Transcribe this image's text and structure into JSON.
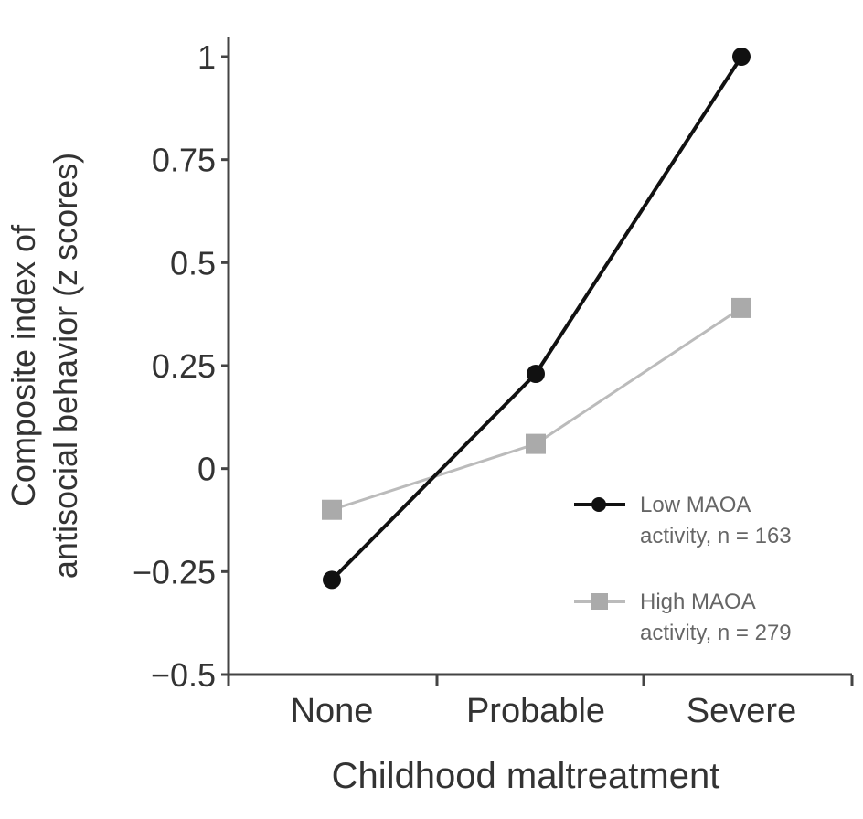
{
  "chart_data": {
    "type": "line",
    "title": "",
    "xlabel": "Childhood maltreatment",
    "ylabel_lines": [
      "Composite index of",
      "antisocial behavior (z scores)"
    ],
    "categories": [
      "None",
      "Probable",
      "Severe"
    ],
    "ylim": [
      -0.5,
      1
    ],
    "yticks": [
      -0.5,
      -0.25,
      0,
      0.25,
      0.5,
      0.75,
      1
    ],
    "ytick_labels": [
      "−0.5",
      "−0.25",
      "0",
      "0.25",
      "0.5",
      "0.75",
      "1"
    ],
    "grid": false,
    "legend_placement": "bottom-right",
    "series": [
      {
        "name_lines": [
          "Low MAOA",
          "activity, n = 163"
        ],
        "values": [
          -0.27,
          0.23,
          1.0
        ],
        "color": "#111111",
        "marker": "diamond"
      },
      {
        "name_lines": [
          "High MAOA",
          "activity, n = 279"
        ],
        "values": [
          -0.1,
          0.06,
          0.39
        ],
        "color": "#bbbbbb",
        "marker": "square"
      }
    ]
  }
}
